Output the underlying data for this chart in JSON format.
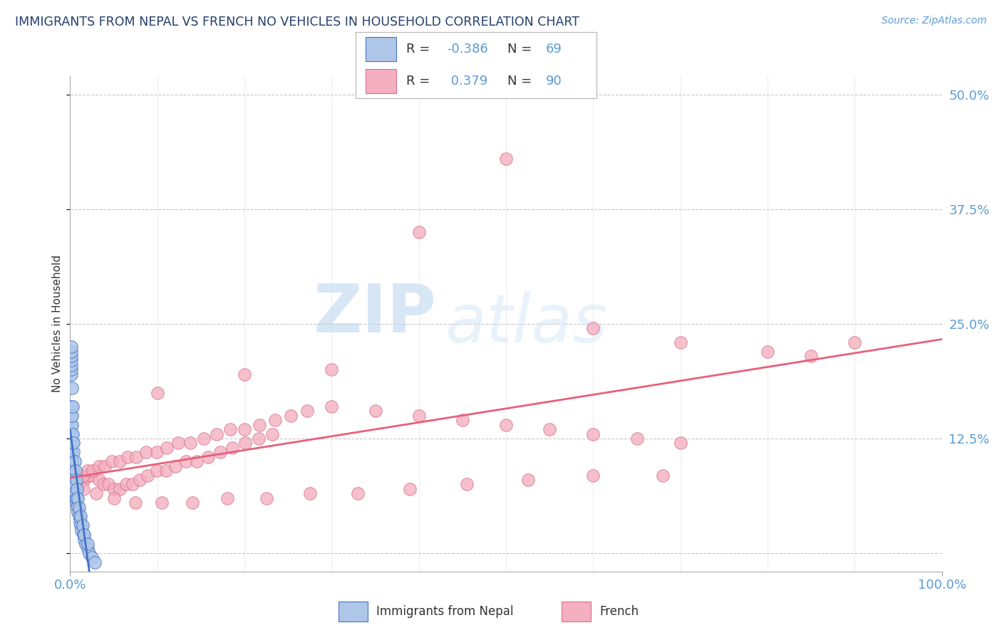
{
  "title": "IMMIGRANTS FROM NEPAL VS FRENCH NO VEHICLES IN HOUSEHOLD CORRELATION CHART",
  "source": "Source: ZipAtlas.com",
  "ylabel": "No Vehicles in Household",
  "r_nepal": -0.386,
  "n_nepal": 69,
  "r_french": 0.379,
  "n_french": 90,
  "color_nepal": "#aec6e8",
  "color_french": "#f4afc0",
  "color_nepal_line": "#4472c4",
  "color_french_line": "#e8607a",
  "color_axis": "#5b9bd5",
  "color_title": "#243f6e",
  "xlim": [
    0.0,
    1.0
  ],
  "ylim": [
    -0.02,
    0.52
  ],
  "ytick_vals": [
    0.0,
    0.125,
    0.25,
    0.375,
    0.5
  ],
  "ytick_labels": [
    "",
    "12.5%",
    "25.0%",
    "37.5%",
    "50.0%"
  ],
  "watermark_zip": "ZIP",
  "watermark_atlas": "atlas",
  "nepal_x": [
    0.001,
    0.001,
    0.001,
    0.001,
    0.001,
    0.001,
    0.001,
    0.001,
    0.002,
    0.002,
    0.002,
    0.002,
    0.002,
    0.003,
    0.003,
    0.003,
    0.003,
    0.004,
    0.004,
    0.004,
    0.005,
    0.005,
    0.005,
    0.006,
    0.006,
    0.007,
    0.007,
    0.008,
    0.009,
    0.01,
    0.011,
    0.012,
    0.013,
    0.015,
    0.016,
    0.018,
    0.02,
    0.022,
    0.025,
    0.028,
    0.001,
    0.001,
    0.001,
    0.002,
    0.002,
    0.002,
    0.003,
    0.003,
    0.004,
    0.004,
    0.005,
    0.006,
    0.007,
    0.008,
    0.009,
    0.01,
    0.012,
    0.014,
    0.016,
    0.02,
    0.001,
    0.001,
    0.001,
    0.001,
    0.001,
    0.001,
    0.001,
    0.002,
    0.003
  ],
  "nepal_y": [
    0.08,
    0.085,
    0.09,
    0.095,
    0.1,
    0.105,
    0.11,
    0.115,
    0.08,
    0.085,
    0.09,
    0.095,
    0.1,
    0.075,
    0.08,
    0.085,
    0.09,
    0.07,
    0.075,
    0.08,
    0.065,
    0.07,
    0.075,
    0.06,
    0.065,
    0.055,
    0.06,
    0.05,
    0.045,
    0.04,
    0.035,
    0.03,
    0.025,
    0.02,
    0.015,
    0.01,
    0.005,
    0.0,
    -0.005,
    -0.01,
    0.14,
    0.15,
    0.16,
    0.13,
    0.14,
    0.15,
    0.12,
    0.13,
    0.11,
    0.12,
    0.1,
    0.09,
    0.08,
    0.07,
    0.06,
    0.05,
    0.04,
    0.03,
    0.02,
    0.01,
    0.195,
    0.2,
    0.205,
    0.21,
    0.215,
    0.22,
    0.225,
    0.18,
    0.16
  ],
  "french_x": [
    0.001,
    0.003,
    0.005,
    0.007,
    0.01,
    0.013,
    0.016,
    0.02,
    0.024,
    0.028,
    0.033,
    0.038,
    0.044,
    0.05,
    0.057,
    0.064,
    0.072,
    0.08,
    0.089,
    0.099,
    0.11,
    0.121,
    0.133,
    0.145,
    0.158,
    0.172,
    0.186,
    0.201,
    0.216,
    0.232,
    0.003,
    0.006,
    0.01,
    0.015,
    0.02,
    0.026,
    0.033,
    0.04,
    0.048,
    0.057,
    0.066,
    0.076,
    0.087,
    0.099,
    0.111,
    0.124,
    0.138,
    0.153,
    0.168,
    0.184,
    0.2,
    0.217,
    0.235,
    0.253,
    0.272,
    0.005,
    0.015,
    0.03,
    0.05,
    0.075,
    0.105,
    0.14,
    0.18,
    0.225,
    0.275,
    0.33,
    0.39,
    0.455,
    0.525,
    0.6,
    0.68,
    0.3,
    0.35,
    0.4,
    0.45,
    0.5,
    0.55,
    0.6,
    0.65,
    0.7,
    0.1,
    0.2,
    0.3,
    0.4,
    0.5,
    0.6,
    0.7,
    0.8,
    0.85,
    0.9
  ],
  "french_y": [
    0.065,
    0.07,
    0.07,
    0.075,
    0.075,
    0.08,
    0.08,
    0.085,
    0.085,
    0.09,
    0.08,
    0.075,
    0.075,
    0.07,
    0.07,
    0.075,
    0.075,
    0.08,
    0.085,
    0.09,
    0.09,
    0.095,
    0.1,
    0.1,
    0.105,
    0.11,
    0.115,
    0.12,
    0.125,
    0.13,
    0.08,
    0.08,
    0.085,
    0.085,
    0.09,
    0.09,
    0.095,
    0.095,
    0.1,
    0.1,
    0.105,
    0.105,
    0.11,
    0.11,
    0.115,
    0.12,
    0.12,
    0.125,
    0.13,
    0.135,
    0.135,
    0.14,
    0.145,
    0.15,
    0.155,
    0.065,
    0.07,
    0.065,
    0.06,
    0.055,
    0.055,
    0.055,
    0.06,
    0.06,
    0.065,
    0.065,
    0.07,
    0.075,
    0.08,
    0.085,
    0.085,
    0.16,
    0.155,
    0.15,
    0.145,
    0.14,
    0.135,
    0.13,
    0.125,
    0.12,
    0.175,
    0.195,
    0.2,
    0.35,
    0.43,
    0.245,
    0.23,
    0.22,
    0.215,
    0.23
  ]
}
